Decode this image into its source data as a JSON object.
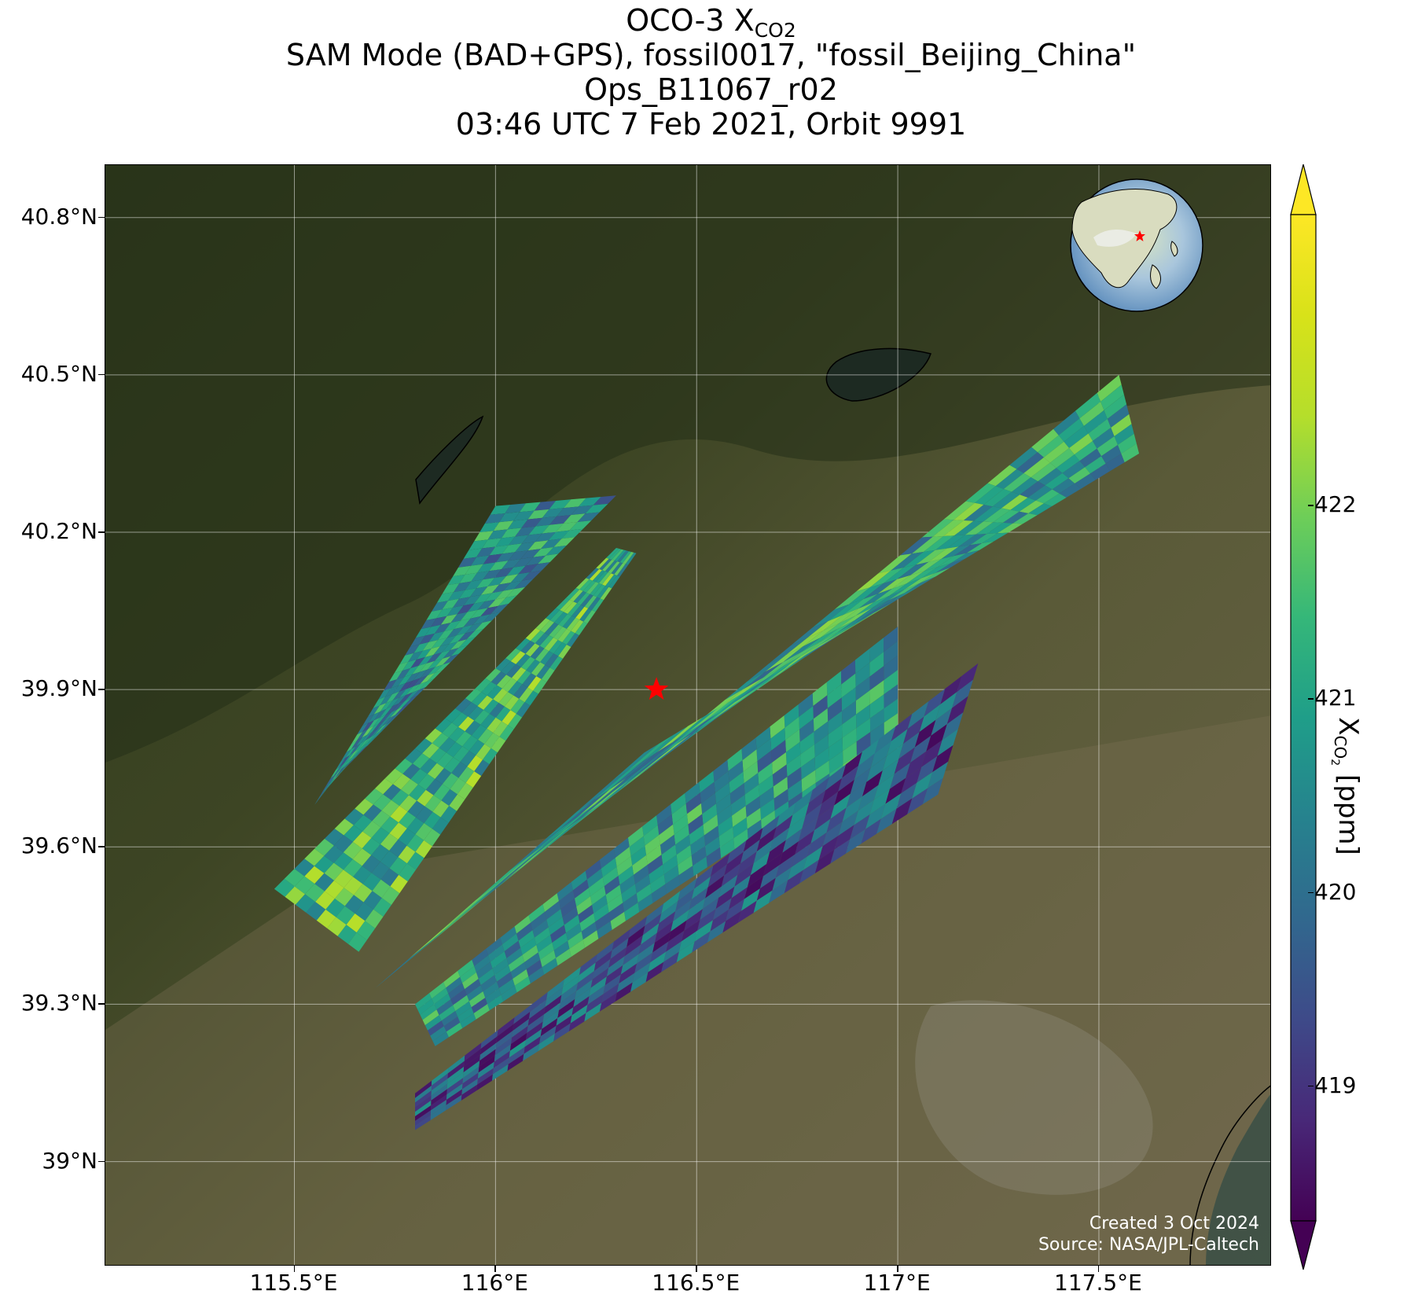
{
  "title": {
    "line1_prefix": "OCO-3 X",
    "line1_sub": "CO2",
    "line2": "SAM Mode (BAD+GPS), fossil0017, \"fossil_Beijing_China\"",
    "line3": "Ops_B11067_r02",
    "line4": "03:46 UTC 7 Feb 2021, Orbit 9991"
  },
  "credit": {
    "line1": "Created 3 Oct 2024",
    "line2": "Source: NASA/JPL-Caltech"
  },
  "map": {
    "lon_range": [
      115.03,
      117.93
    ],
    "lat_range": [
      38.8,
      40.9
    ],
    "lat_ticks": [
      {
        "value": 40.8,
        "label": "40.8°N"
      },
      {
        "value": 40.5,
        "label": "40.5°N"
      },
      {
        "value": 40.2,
        "label": "40.2°N"
      },
      {
        "value": 39.9,
        "label": "39.9°N"
      },
      {
        "value": 39.6,
        "label": "39.6°N"
      },
      {
        "value": 39.3,
        "label": "39.3°N"
      },
      {
        "value": 39.0,
        "label": "39°N"
      }
    ],
    "lon_ticks": [
      {
        "value": 115.5,
        "label": "115.5°E"
      },
      {
        "value": 116.0,
        "label": "116°E"
      },
      {
        "value": 116.5,
        "label": "116.5°E"
      },
      {
        "value": 117.0,
        "label": "117°E"
      },
      {
        "value": 117.5,
        "label": "117.5°E"
      }
    ],
    "target_marker": {
      "name": "fossil_Beijing_China",
      "lon": 116.4,
      "lat": 39.9,
      "color": "#ff0000"
    },
    "background": "satellite-imagery",
    "inset_globe": {
      "type": "orthographic-globe",
      "marker_color": "#ff0000"
    }
  },
  "chart_data": {
    "type": "heatmap",
    "variable": "XCO2",
    "units": "ppm",
    "colormap": "viridis",
    "colorbar": {
      "label_prefix": "X",
      "label_sub": "CO",
      "label_subsub": "2",
      "label_suffix": " [ppm]",
      "range": [
        418.3,
        423.5
      ],
      "ticks": [
        422,
        421,
        420,
        419
      ],
      "extend": "both"
    },
    "swaths": [
      {
        "name": "swath-1",
        "corners_lonlat": [
          [
            116.0,
            40.25
          ],
          [
            116.3,
            40.27
          ],
          [
            115.6,
            39.73
          ],
          [
            115.55,
            39.68
          ]
        ],
        "mean_xco2": 420.6
      },
      {
        "name": "swath-2",
        "corners_lonlat": [
          [
            116.35,
            40.16
          ],
          [
            116.3,
            40.17
          ],
          [
            115.45,
            39.52
          ],
          [
            115.66,
            39.4
          ]
        ],
        "mean_xco2": 421.3
      },
      {
        "name": "swath-3",
        "corners_lonlat": [
          [
            117.55,
            40.5
          ],
          [
            117.6,
            40.35
          ],
          [
            116.37,
            39.78
          ],
          [
            115.7,
            39.33
          ]
        ],
        "mean_xco2": 421.0
      },
      {
        "name": "swath-4",
        "corners_lonlat": [
          [
            117.0,
            40.02
          ],
          [
            117.0,
            39.8
          ],
          [
            115.85,
            39.22
          ],
          [
            115.8,
            39.3
          ]
        ],
        "mean_xco2": 420.7
      },
      {
        "name": "swath-5",
        "corners_lonlat": [
          [
            117.2,
            39.95
          ],
          [
            117.1,
            39.7
          ],
          [
            115.8,
            39.06
          ],
          [
            115.8,
            39.13
          ]
        ],
        "mean_xco2": 419.6
      }
    ]
  }
}
